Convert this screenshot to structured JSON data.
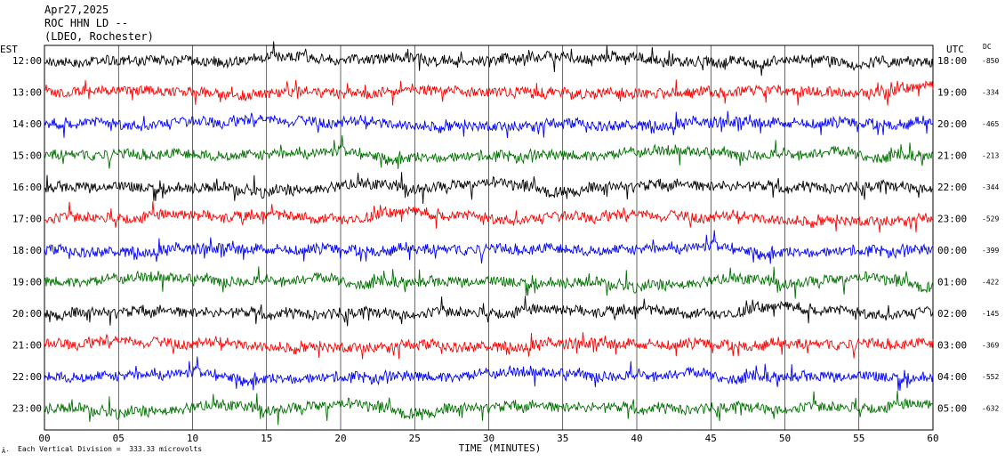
{
  "header": {
    "date": "Apr27,2025",
    "station": "ROC HHN LD --",
    "network": "(LDEO, Rochester)"
  },
  "timezones": {
    "left": "EST",
    "right": "UTC",
    "dc_label": "DC"
  },
  "footer": {
    "symbol": "Â·",
    "text": "Each Vertical Division =  333.33 microvolts"
  },
  "chart_data": {
    "type": "line",
    "subtype": "helicorder",
    "xlabel": "TIME (MINUTES)",
    "xlim": [
      0,
      60
    ],
    "x_ticks": [
      "00",
      "05",
      "10",
      "15",
      "20",
      "25",
      "30",
      "35",
      "40",
      "45",
      "50",
      "55",
      "60"
    ],
    "grid": true,
    "line_colors": [
      "#000000",
      "#ff0000",
      "#0000ff",
      "#007000"
    ],
    "rows": [
      {
        "local": "12:00",
        "utc": "18:00",
        "dc": "-850"
      },
      {
        "local": "13:00",
        "utc": "19:00",
        "dc": "-334"
      },
      {
        "local": "14:00",
        "utc": "20:00",
        "dc": "-465"
      },
      {
        "local": "15:00",
        "utc": "21:00",
        "dc": "-213"
      },
      {
        "local": "16:00",
        "utc": "22:00",
        "dc": "-344"
      },
      {
        "local": "17:00",
        "utc": "23:00",
        "dc": "-529"
      },
      {
        "local": "18:00",
        "utc": "00:00",
        "dc": "-399"
      },
      {
        "local": "19:00",
        "utc": "01:00",
        "dc": "-422"
      },
      {
        "local": "20:00",
        "utc": "02:00",
        "dc": "-145"
      },
      {
        "local": "21:00",
        "utc": "03:00",
        "dc": "-369"
      },
      {
        "local": "22:00",
        "utc": "04:00",
        "dc": "-552"
      },
      {
        "local": "23:00",
        "utc": "05:00",
        "dc": "-632"
      }
    ]
  }
}
